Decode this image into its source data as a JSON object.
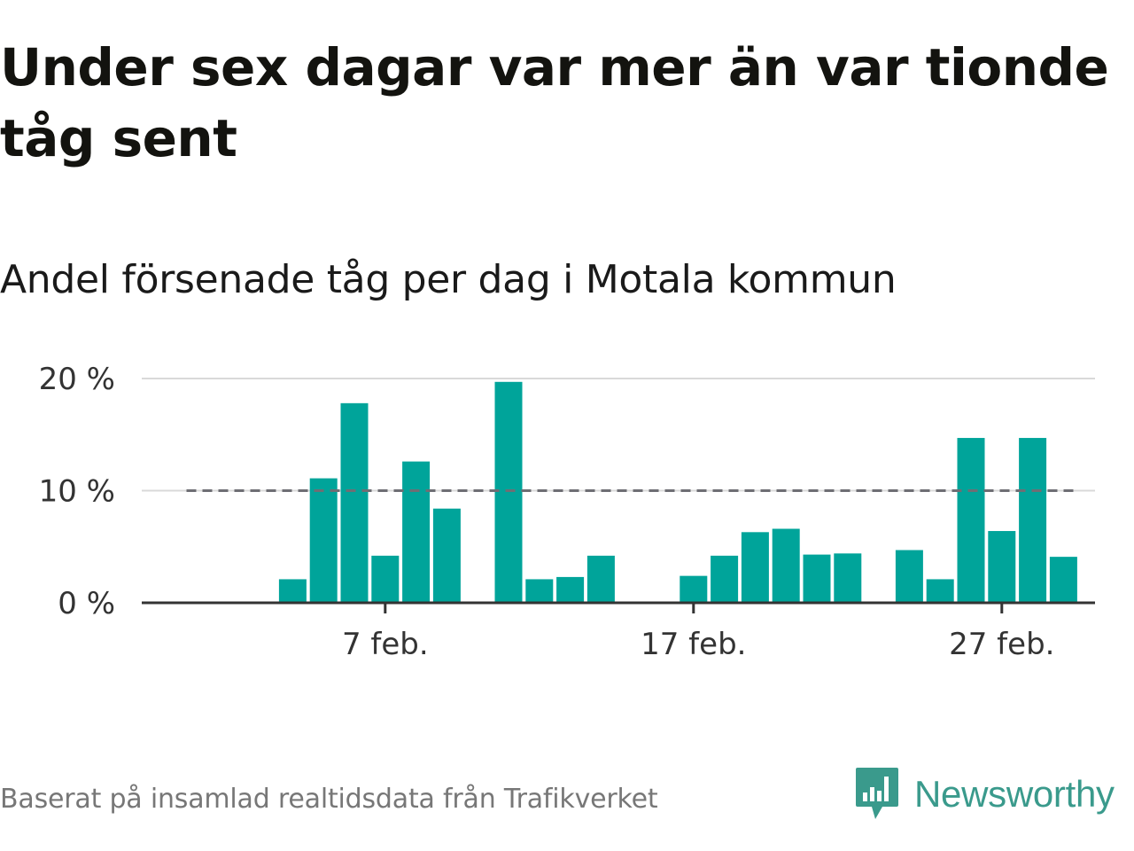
{
  "title": "Under sex dagar var mer än var tionde tåg sent",
  "subtitle": "Andel försenade tåg per dag i Motala kommun",
  "footer": "Baserat på insamlad realtidsdata från Trafikverket",
  "brand": {
    "name": "Newsworthy",
    "color": "#3a9a8c",
    "icon": "newsworthy-logo-icon"
  },
  "colors": {
    "bar": "#00a49a",
    "reference_line": "#6e6e74",
    "grid": "#d9d9d9",
    "axis": "#333333"
  },
  "chart_data": {
    "type": "bar",
    "title": "",
    "xlabel": "",
    "ylabel": "",
    "x_tick_labels": [
      "7 feb.",
      "17 feb.",
      "27 feb."
    ],
    "y_tick_labels": [
      "0 %",
      "10 %",
      "20 %"
    ],
    "ylim": [
      0,
      20
    ],
    "grid": true,
    "reference_line": {
      "y": 10,
      "style": "dashed"
    },
    "series": [
      {
        "values": [
          null,
          null,
          null,
          2.1,
          11.1,
          17.8,
          4.2,
          12.6,
          8.4,
          null,
          19.7,
          2.1,
          2.3,
          4.2,
          null,
          null,
          2.4,
          4.2,
          6.3,
          6.6,
          4.3,
          4.4,
          null,
          4.7,
          2.1,
          14.7,
          6.4,
          14.7,
          4.1
        ]
      }
    ]
  }
}
